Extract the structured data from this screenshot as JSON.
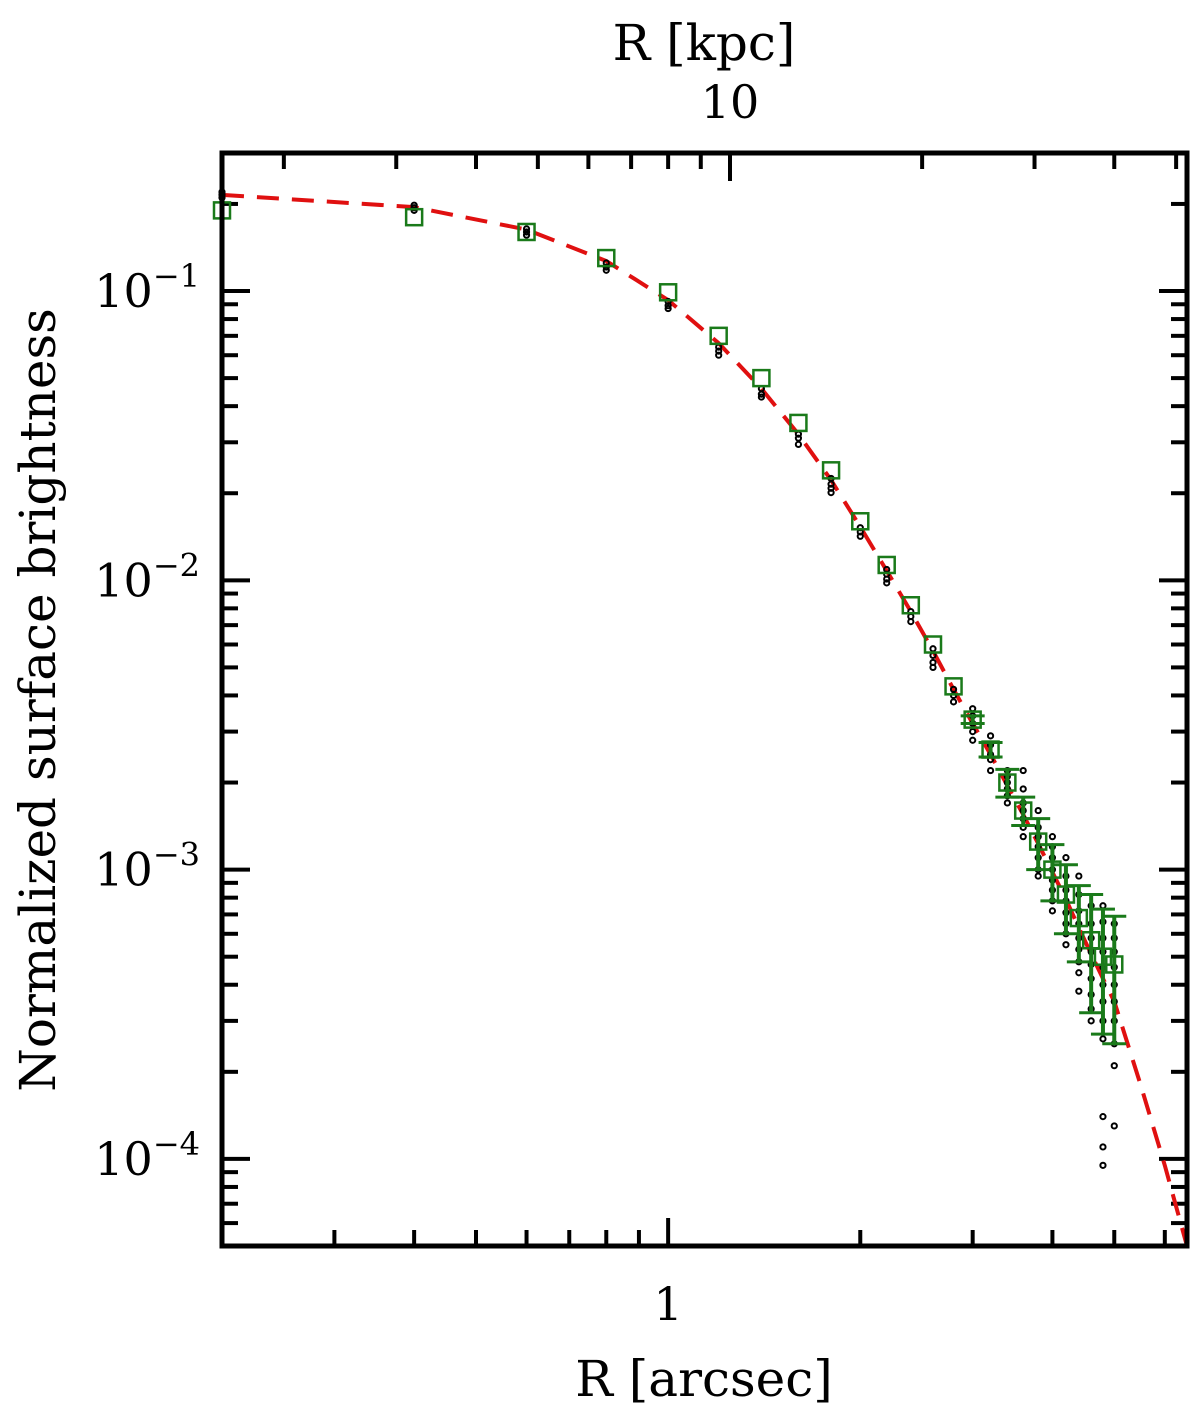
{
  "chart_data": {
    "type": "scatter",
    "xlabel": "R [arcsec]",
    "top_xlabel": "R [kpc]",
    "ylabel": "Normalized surface brightness",
    "x_scale": "log",
    "y_scale": "log",
    "xlim": [
      0.2,
      6.5
    ],
    "ylim": [
      5e-05,
      0.3
    ],
    "x_tick_labels": [
      {
        "value": 1,
        "label": "1"
      }
    ],
    "top_x_tick_labels": [
      {
        "value": 10,
        "label": "10"
      }
    ],
    "top_axis_arcsec_per_kpc": 0.125,
    "y_tick_labels": [
      {
        "value": 0.1,
        "base": "10",
        "exp": "−1"
      },
      {
        "value": 0.01,
        "base": "10",
        "exp": "−2"
      },
      {
        "value": 0.001,
        "base": "10",
        "exp": "−3"
      },
      {
        "value": 0.0001,
        "base": "10",
        "exp": "−4"
      }
    ],
    "grid": false,
    "colors": {
      "profile": "#1a7a1a",
      "model": "#e01010",
      "points": "#000000",
      "frame": "#000000"
    },
    "series": [
      {
        "marker": "open-square",
        "x": [
          0.2,
          0.4,
          0.6,
          0.8,
          1.0,
          1.2,
          1.4,
          1.6,
          1.8,
          2.0,
          2.2,
          2.4,
          2.6,
          2.8,
          3.0,
          3.2,
          3.4,
          3.6,
          3.8,
          4.0,
          4.2,
          4.4,
          4.6,
          4.8,
          5.0
        ],
        "y": [
          0.19,
          0.18,
          0.16,
          0.13,
          0.099,
          0.07,
          0.05,
          0.035,
          0.024,
          0.016,
          0.0113,
          0.0082,
          0.006,
          0.0043,
          0.0033,
          0.0026,
          0.002,
          0.0016,
          0.00125,
          0.001,
          0.00082,
          0.00068,
          0.00057,
          0.0005,
          0.00047
        ],
        "yerr": [
          0,
          0,
          0,
          0,
          0,
          0,
          0,
          0,
          0,
          0,
          0,
          0,
          0,
          0,
          0.0001,
          0.00015,
          0.00022,
          0.00018,
          0.00025,
          0.00022,
          0.00022,
          0.0002,
          0.00025,
          0.00023,
          0.00022
        ]
      },
      {
        "style": "dashed-line",
        "x": [
          0.2,
          0.4,
          0.6,
          0.8,
          1.0,
          1.2,
          1.4,
          1.6,
          1.8,
          2.0,
          2.2,
          2.4,
          2.6,
          2.8,
          3.0,
          3.2,
          3.4,
          3.6,
          3.8,
          4.0,
          4.2,
          4.4,
          4.6,
          4.8,
          5.0,
          5.5,
          6.0,
          6.5
        ],
        "y": [
          0.215,
          0.195,
          0.163,
          0.127,
          0.093,
          0.066,
          0.046,
          0.032,
          0.0222,
          0.0153,
          0.0108,
          0.0078,
          0.0057,
          0.0042,
          0.0032,
          0.0025,
          0.00195,
          0.00155,
          0.00123,
          0.00098,
          0.00079,
          0.00063,
          0.00051,
          0.00042,
          0.00035,
          0.00018,
          9.5e-05,
          5e-05
        ]
      },
      {
        "marker": "small-dot",
        "x": [
          0.2,
          0.2,
          0.2,
          0.4,
          0.4,
          0.4,
          0.6,
          0.6,
          0.6,
          0.8,
          0.8,
          0.8,
          1.0,
          1.0,
          1.0,
          1.2,
          1.2,
          1.2,
          1.4,
          1.4,
          1.4,
          1.6,
          1.6,
          1.6,
          1.8,
          1.8,
          1.8,
          1.8,
          2.0,
          2.0,
          2.0,
          2.2,
          2.2,
          2.2,
          2.2,
          2.4,
          2.4,
          2.4,
          2.6,
          2.6,
          2.6,
          2.6,
          2.8,
          2.8,
          2.8,
          3.0,
          3.0,
          3.0,
          3.0,
          3.0,
          3.2,
          3.2,
          3.2,
          3.2,
          3.2,
          3.4,
          3.4,
          3.4,
          3.4,
          3.4,
          3.4,
          3.6,
          3.6,
          3.6,
          3.6,
          3.6,
          3.6,
          3.6,
          3.8,
          3.8,
          3.8,
          3.8,
          3.8,
          3.8,
          3.8,
          4.0,
          4.0,
          4.0,
          4.0,
          4.0,
          4.0,
          4.0,
          4.0,
          4.2,
          4.2,
          4.2,
          4.2,
          4.2,
          4.2,
          4.2,
          4.2,
          4.4,
          4.4,
          4.4,
          4.4,
          4.4,
          4.4,
          4.4,
          4.4,
          4.4,
          4.6,
          4.6,
          4.6,
          4.6,
          4.6,
          4.6,
          4.6,
          4.6,
          4.6,
          4.8,
          4.8,
          4.8,
          4.8,
          4.8,
          4.8,
          4.8,
          4.8,
          4.8,
          4.8,
          4.8,
          4.8,
          5.0,
          5.0,
          5.0,
          5.0,
          5.0,
          5.0,
          5.0,
          5.0,
          5.0,
          5.0
        ],
        "y": [
          0.22,
          0.215,
          0.21,
          0.198,
          0.194,
          0.19,
          0.164,
          0.16,
          0.156,
          0.125,
          0.121,
          0.118,
          0.092,
          0.089,
          0.087,
          0.064,
          0.062,
          0.06,
          0.046,
          0.044,
          0.043,
          0.032,
          0.031,
          0.0295,
          0.0225,
          0.0215,
          0.0208,
          0.0201,
          0.0152,
          0.0147,
          0.0142,
          0.0109,
          0.0105,
          0.0101,
          0.0098,
          0.0078,
          0.0075,
          0.0072,
          0.0058,
          0.0055,
          0.0052,
          0.005,
          0.0042,
          0.004,
          0.0038,
          0.0036,
          0.0034,
          0.0032,
          0.003,
          0.0028,
          0.0029,
          0.0027,
          0.0025,
          0.0024,
          0.0022,
          0.0022,
          0.0021,
          0.002,
          0.0019,
          0.0018,
          0.0017,
          0.0022,
          0.0019,
          0.0017,
          0.0016,
          0.0015,
          0.0014,
          0.0013,
          0.0016,
          0.0014,
          0.0013,
          0.0012,
          0.0011,
          0.001,
          0.00095,
          0.0013,
          0.0012,
          0.0011,
          0.001,
          0.00092,
          0.00085,
          0.00078,
          0.00072,
          0.0011,
          0.00095,
          0.00085,
          0.00078,
          0.00071,
          0.00065,
          0.0006,
          0.00055,
          0.00095,
          0.00082,
          0.00072,
          0.00065,
          0.00058,
          0.00053,
          0.00048,
          0.00044,
          0.00038,
          0.00075,
          0.00065,
          0.00058,
          0.00052,
          0.00047,
          0.00042,
          0.00037,
          0.00033,
          0.0003,
          0.00075,
          0.00066,
          0.00058,
          0.00052,
          0.00046,
          0.0004,
          0.00035,
          0.0003,
          0.00026,
          0.00014,
          0.00011,
          9.5e-05,
          0.00065,
          0.00058,
          0.00052,
          0.00046,
          0.0004,
          0.00035,
          0.0003,
          0.00025,
          0.00021,
          0.00013
        ]
      }
    ]
  }
}
